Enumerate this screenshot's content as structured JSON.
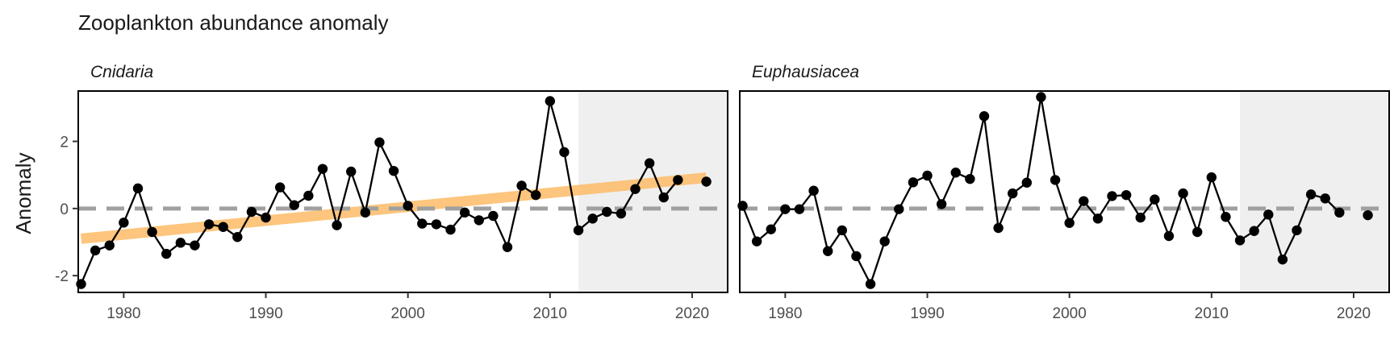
{
  "chart_data": {
    "type": "line",
    "title": "Zooplankton abundance anomaly",
    "ylabel": "Anomaly",
    "xlabel": "",
    "xlim": [
      1976.8,
      2022.5
    ],
    "ylim": [
      -2.5,
      3.5
    ],
    "x_ticks": [
      1980,
      1990,
      2000,
      2010,
      2020
    ],
    "y_ticks": [
      -2,
      0,
      2
    ],
    "reference_line": 0,
    "shaded_region": [
      2012,
      2022.5
    ],
    "grid": false,
    "colors": {
      "series": "#000000",
      "trend": "#FDBF6F",
      "reference": "#A0A0A0",
      "shade": "#EFEFEF"
    },
    "panels": [
      {
        "name": "Cnidaria",
        "x": [
          1977,
          1978,
          1979,
          1980,
          1981,
          1982,
          1983,
          1984,
          1985,
          1986,
          1987,
          1988,
          1989,
          1990,
          1991,
          1992,
          1993,
          1994,
          1995,
          1996,
          1997,
          1998,
          1999,
          2000,
          2001,
          2002,
          2003,
          2004,
          2005,
          2006,
          2007,
          2008,
          2009,
          2010,
          2011,
          2012,
          2013,
          2014,
          2015,
          2016,
          2017,
          2018,
          2019,
          2021
        ],
        "y": [
          -2.25,
          -1.25,
          -1.1,
          -0.42,
          0.6,
          -0.7,
          -1.35,
          -1.02,
          -1.1,
          -0.47,
          -0.55,
          -0.85,
          -0.1,
          -0.27,
          0.63,
          0.1,
          0.38,
          1.18,
          -0.5,
          1.1,
          -0.12,
          1.97,
          1.12,
          0.08,
          -0.45,
          -0.47,
          -0.63,
          -0.12,
          -0.35,
          -0.22,
          -1.15,
          0.68,
          0.4,
          3.2,
          1.68,
          -0.65,
          -0.3,
          -0.1,
          -0.15,
          0.58,
          1.35,
          0.33,
          0.85,
          0.8
        ],
        "trend": {
          "x": [
            1977,
            2021
          ],
          "y": [
            -0.9,
            0.92
          ]
        }
      },
      {
        "name": "Euphausiacea",
        "x": [
          1977,
          1978,
          1979,
          1980,
          1981,
          1982,
          1983,
          1984,
          1985,
          1986,
          1987,
          1988,
          1989,
          1990,
          1991,
          1992,
          1993,
          1994,
          1995,
          1996,
          1997,
          1998,
          1999,
          2000,
          2001,
          2002,
          2003,
          2004,
          2005,
          2006,
          2007,
          2008,
          2009,
          2010,
          2011,
          2012,
          2013,
          2014,
          2015,
          2016,
          2017,
          2018,
          2019,
          2021
        ],
        "y": [
          0.08,
          -0.98,
          -0.62,
          -0.02,
          -0.02,
          0.53,
          -1.27,
          -0.65,
          -1.42,
          -2.25,
          -0.98,
          -0.02,
          0.78,
          0.98,
          0.13,
          1.07,
          0.88,
          2.75,
          -0.58,
          0.45,
          0.77,
          3.32,
          0.85,
          -0.43,
          0.22,
          -0.3,
          0.37,
          0.4,
          -0.27,
          0.27,
          -0.82,
          0.45,
          -0.7,
          0.93,
          -0.25,
          -0.95,
          -0.67,
          -0.18,
          -1.52,
          -0.65,
          0.42,
          0.3,
          -0.12,
          -0.2
        ]
      }
    ]
  }
}
